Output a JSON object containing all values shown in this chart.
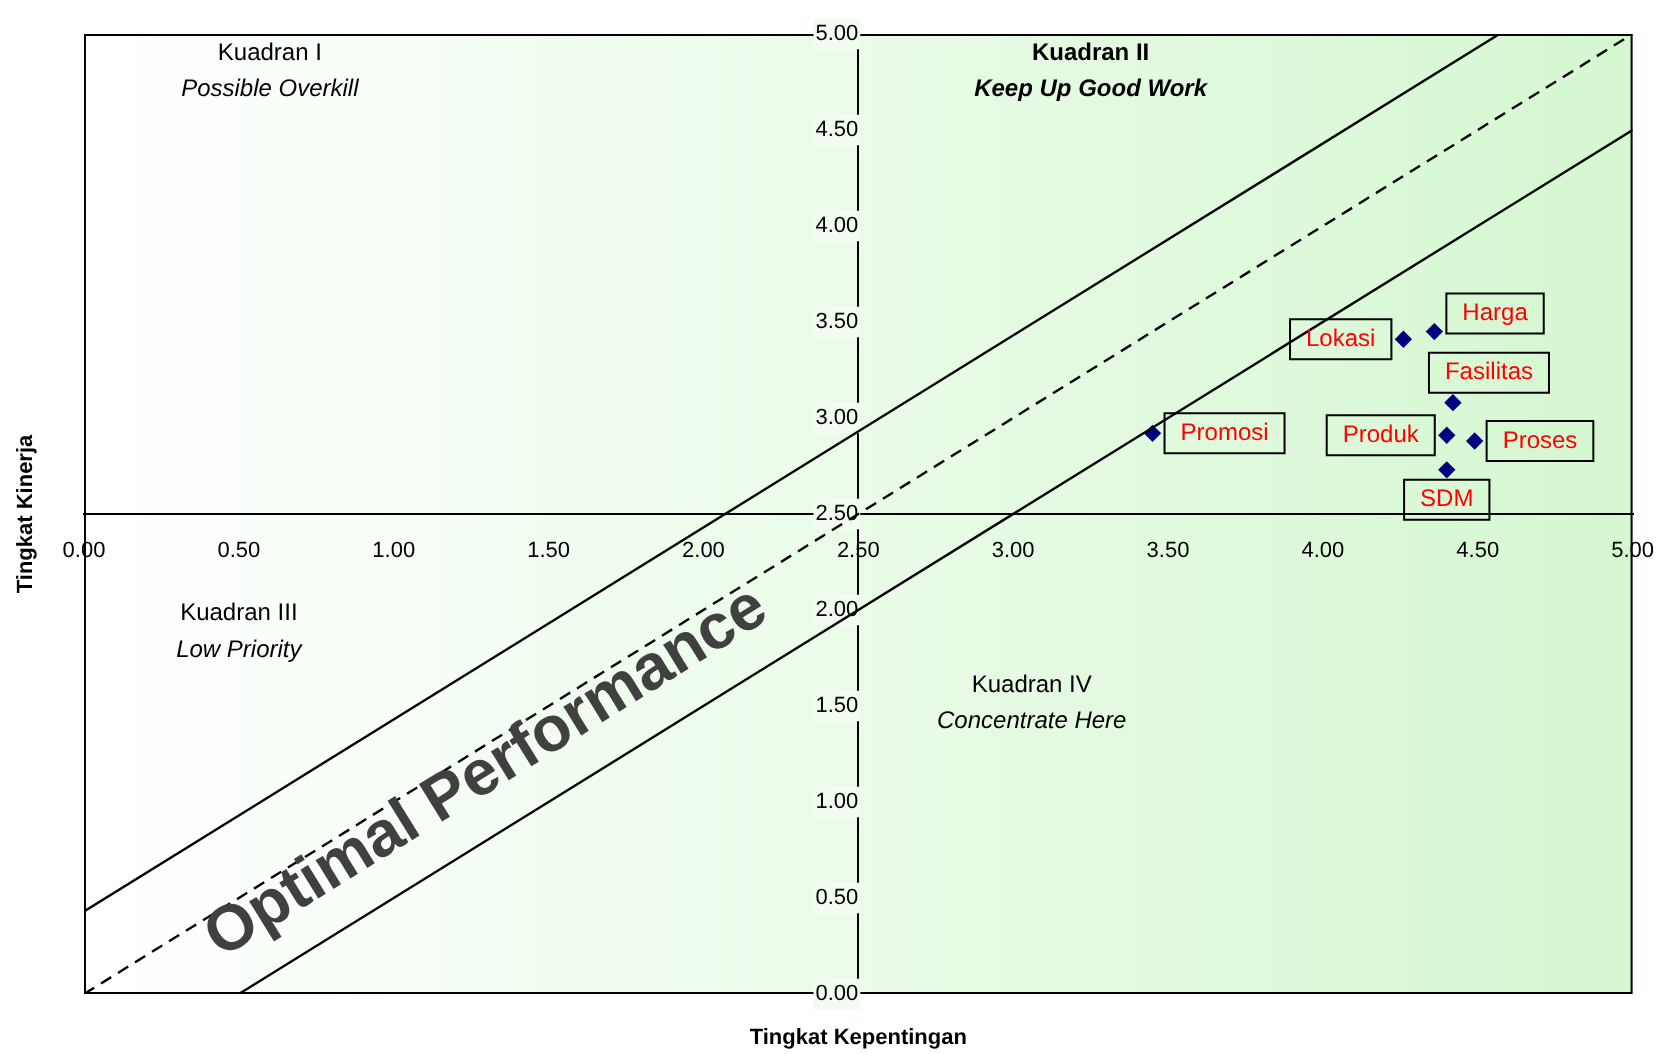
{
  "chart_data": {
    "type": "scatter",
    "xlabel": "Tingkat Kepentingan",
    "ylabel": "Tingkat Kinerja",
    "xlim": [
      0,
      5
    ],
    "ylim": [
      0,
      5
    ],
    "xticks": [
      {
        "value": 0,
        "label": "0.00"
      },
      {
        "value": 0.5,
        "label": "0.50"
      },
      {
        "value": 1,
        "label": "1.00"
      },
      {
        "value": 1.5,
        "label": "1.50"
      },
      {
        "value": 2,
        "label": "2.00"
      },
      {
        "value": 2.5,
        "label": "2.50"
      },
      {
        "value": 3,
        "label": "3.00"
      },
      {
        "value": 3.5,
        "label": "3.50"
      },
      {
        "value": 4,
        "label": "4.00"
      },
      {
        "value": 4.5,
        "label": "4.50"
      },
      {
        "value": 5,
        "label": "5.00"
      }
    ],
    "yticks": [
      {
        "value": 0,
        "label": "0.00"
      },
      {
        "value": 0.5,
        "label": "0.50"
      },
      {
        "value": 1,
        "label": "1.00"
      },
      {
        "value": 1.5,
        "label": "1.50"
      },
      {
        "value": 2,
        "label": "2.00"
      },
      {
        "value": 2.5,
        "label": "2.50"
      },
      {
        "value": 3,
        "label": "3.00"
      },
      {
        "value": 3.5,
        "label": "3.50"
      },
      {
        "value": 4,
        "label": "4.00"
      },
      {
        "value": 4.5,
        "label": "4.50"
      },
      {
        "value": 5,
        "label": "5.00"
      }
    ],
    "grid": false,
    "legend": false,
    "marker": "diamond",
    "series": [
      {
        "color": "#000080",
        "x": [
          3.45,
          4.26,
          4.36,
          4.42,
          4.4,
          4.49,
          4.4
        ],
        "values": [
          2.92,
          3.41,
          3.45,
          3.08,
          2.91,
          2.88,
          2.73
        ],
        "value_labels": [
          "Promosi",
          "Lokasi",
          "Harga",
          "Fasilitas",
          "Produk",
          "Proses",
          "SDM"
        ]
      },
      {
        "type": "line",
        "color": "#000000",
        "line_style": "solid",
        "marker": "none",
        "x": [
          0,
          4.57
        ],
        "values": [
          0.43,
          5
        ]
      },
      {
        "type": "line",
        "color": "#000000",
        "line_style": "dashed",
        "marker": "none",
        "x": [
          0,
          5
        ],
        "values": [
          0,
          5
        ]
      },
      {
        "type": "line",
        "color": "#000000",
        "line_style": "solid",
        "marker": "none",
        "x": [
          0.5,
          5
        ],
        "values": [
          0,
          4.5
        ]
      }
    ],
    "annotations": [
      "Kuadran I\nPossible Overkill",
      "Kuadran II\nKeep Up Good Work",
      "Kuadran III\nLow Priority",
      "Kuadran IV\nConcentrate Here",
      "Optimal Performance"
    ]
  }
}
